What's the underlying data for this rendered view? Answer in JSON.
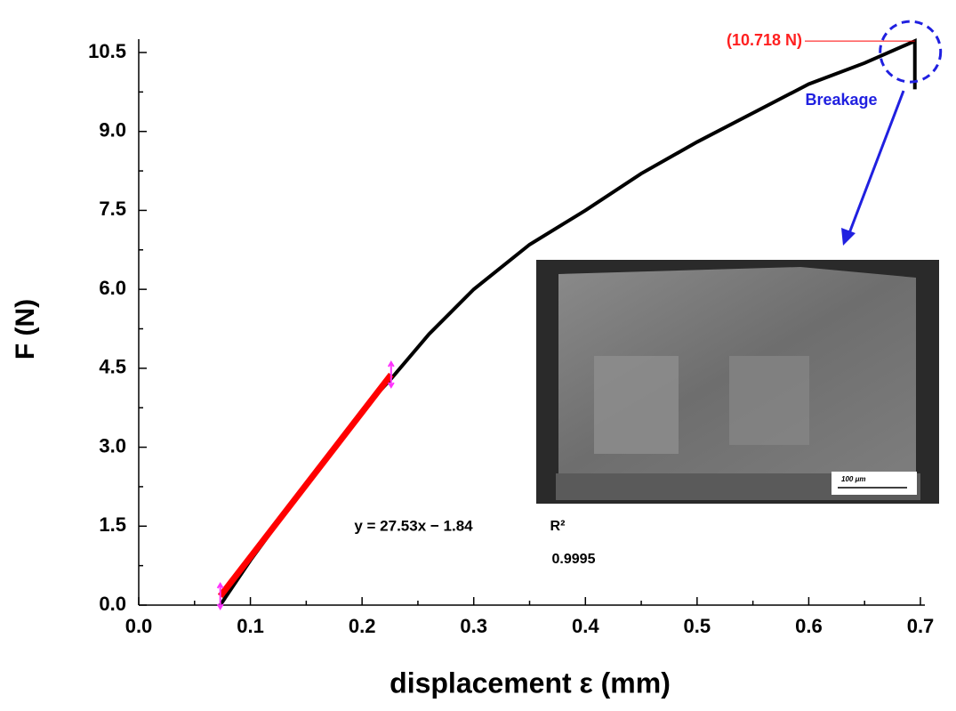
{
  "chart_data": {
    "type": "line",
    "x_label": "displacement ε (mm)",
    "y_label": "F (N)",
    "xlim": [
      0,
      0.7
    ],
    "ylim": [
      0,
      10.5
    ],
    "xticks": [
      {
        "value": 0,
        "label": "0.0"
      },
      0.1,
      0.2,
      0.3,
      0.4,
      0.5,
      0.6,
      0.7
    ],
    "yticks": [
      {
        "value": 0,
        "label": "0.0"
      },
      1.5,
      {
        "value": 3,
        "label": "3.0"
      },
      4.5,
      {
        "value": 6,
        "label": "6.0"
      },
      7.5,
      {
        "value": 9,
        "label": "9.0"
      },
      10.5
    ],
    "series": [
      {
        "color": "#000000",
        "x": [
          0.073,
          0.1,
          0.15,
          0.2,
          0.226,
          0.26,
          0.3,
          0.35,
          0.4,
          0.45,
          0.5,
          0.55,
          0.6,
          0.65,
          0.695,
          0.695
        ],
        "values": [
          0,
          0.85,
          2.3,
          3.7,
          4.3,
          5.15,
          6.0,
          6.85,
          7.5,
          8.2,
          8.8,
          9.35,
          9.9,
          10.3,
          10.718,
          9.8
        ]
      },
      {
        "color": "#ff0000",
        "x": [
          0.073,
          0.226
        ],
        "values": [
          0.17,
          4.38
        ]
      }
    ],
    "annotations": {
      "peak_label": "(10.718 N)",
      "breakage": "Breakage",
      "equation": "y = 27.53x − 1.84",
      "r_squared_label": "R²",
      "r_squared": "0.9995",
      "scale_bar": "100 μm"
    }
  }
}
